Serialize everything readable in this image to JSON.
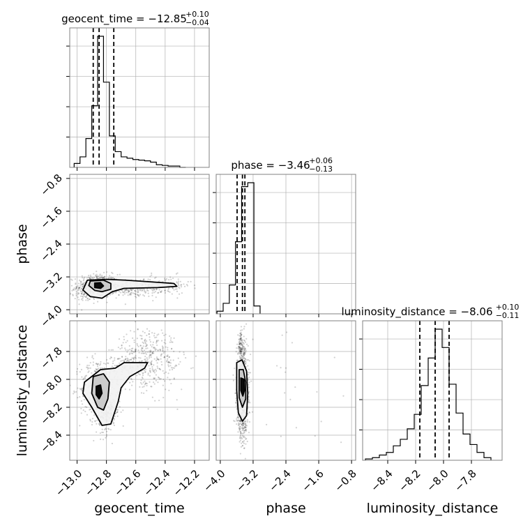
{
  "chart_data": {
    "type": "corner",
    "parameters": [
      "geocent_time",
      "phase",
      "luminosity_distance"
    ],
    "ranges": {
      "geocent_time": [
        -13.05,
        -12.1
      ],
      "phase": [
        -4.1,
        -0.7
      ],
      "luminosity_distance": [
        -8.58,
        -7.58
      ]
    },
    "ticks": {
      "geocent_time": [
        -13.0,
        -12.8,
        -12.6,
        -12.4,
        -12.2
      ],
      "phase": [
        -4.0,
        -3.2,
        -2.4,
        -1.6,
        -0.8
      ],
      "luminosity_distance": [
        -8.4,
        -8.2,
        -8.0,
        -7.8
      ]
    },
    "tick_labels": {
      "geocent_time": [
        "−13.0",
        "−12.8",
        "−12.6",
        "−12.4",
        "−12.2"
      ],
      "phase": [
        "−4.0",
        "−3.2",
        "−2.4",
        "−1.6",
        "−0.8"
      ],
      "luminosity_distance": [
        "−8.4",
        "−8.2",
        "−8.0",
        "−7.8"
      ]
    },
    "titles": [
      {
        "param": "geocent_time",
        "prefix": "geocent_time = −12.85",
        "sup": "+0.10",
        "sub": "−0.04"
      },
      {
        "param": "phase",
        "prefix": "phase = −3.46",
        "sup": "+0.06",
        "sub": "−0.13"
      },
      {
        "param": "luminosity_distance",
        "prefix": "luminosity_distance = −8.06",
        "sup": "+0.10",
        "sub": "−0.11"
      }
    ],
    "quantiles": {
      "geocent_time": [
        -12.89,
        -12.85,
        -12.75
      ],
      "phase": [
        -3.59,
        -3.46,
        -3.4
      ],
      "luminosity_distance": [
        -8.17,
        -8.06,
        -7.96
      ]
    },
    "histograms": {
      "geocent_time": {
        "edges": [
          -13.02,
          -12.98,
          -12.94,
          -12.9,
          -12.86,
          -12.82,
          -12.78,
          -12.74,
          -12.7,
          -12.66,
          -12.62,
          -12.58,
          -12.54,
          -12.5,
          -12.46,
          -12.42,
          -12.38,
          -12.34,
          -12.3,
          -12.26
        ],
        "counts": [
          0.03,
          0.08,
          0.22,
          0.47,
          1.0,
          0.65,
          0.24,
          0.12,
          0.08,
          0.07,
          0.06,
          0.055,
          0.05,
          0.04,
          0.02,
          0.015,
          0.01,
          0.01,
          0.0
        ]
      },
      "phase": {
        "edges": [
          -4.08,
          -3.93,
          -3.78,
          -3.63,
          -3.48,
          -3.33,
          -3.18,
          -3.03
        ],
        "counts": [
          0.02,
          0.08,
          0.22,
          0.55,
          0.97,
          1.0,
          0.06
        ]
      },
      "luminosity_distance": {
        "edges": [
          -8.56,
          -8.51,
          -8.46,
          -8.41,
          -8.36,
          -8.31,
          -8.26,
          -8.21,
          -8.16,
          -8.11,
          -8.06,
          -8.01,
          -7.96,
          -7.91,
          -7.86,
          -7.81,
          -7.76,
          -7.71,
          -7.66
        ],
        "counts": [
          0.01,
          0.02,
          0.04,
          0.06,
          0.11,
          0.16,
          0.24,
          0.35,
          0.57,
          0.78,
          1.0,
          0.86,
          0.58,
          0.36,
          0.2,
          0.12,
          0.06,
          0.02
        ]
      }
    },
    "scatter": {
      "phase|geocent_time": {
        "clusters": [
          {
            "cx": -12.86,
            "cy": -3.42,
            "sx": 0.07,
            "sy": 0.14,
            "n": 520
          },
          {
            "cx": -12.62,
            "cy": -3.48,
            "sx": 0.1,
            "sy": 0.1,
            "n": 230
          },
          {
            "cx": -12.4,
            "cy": -3.4,
            "sx": 0.09,
            "sy": 0.12,
            "n": 110
          },
          {
            "cx": -12.95,
            "cy": -3.6,
            "sx": 0.05,
            "sy": 0.12,
            "n": 60
          }
        ]
      },
      "luminosity_distance|geocent_time": {
        "clusters": [
          {
            "cx": -12.86,
            "cy": -8.07,
            "sx": 0.06,
            "sy": 0.11,
            "n": 360
          },
          {
            "cx": -12.8,
            "cy": -8.22,
            "sx": 0.05,
            "sy": 0.09,
            "n": 180
          },
          {
            "cx": -12.62,
            "cy": -7.9,
            "sx": 0.1,
            "sy": 0.08,
            "n": 260
          },
          {
            "cx": -12.5,
            "cy": -7.76,
            "sx": 0.09,
            "sy": 0.07,
            "n": 150
          },
          {
            "cx": -12.42,
            "cy": -7.95,
            "sx": 0.08,
            "sy": 0.1,
            "n": 90
          }
        ]
      },
      "luminosity_distance|phase": {
        "clusters": [
          {
            "cx": -3.46,
            "cy": -8.04,
            "sx": 0.07,
            "sy": 0.15,
            "n": 700
          },
          {
            "cx": -3.5,
            "cy": -7.75,
            "sx": 0.04,
            "sy": 0.05,
            "n": 80
          },
          {
            "cx": -3.45,
            "cy": -8.32,
            "sx": 0.07,
            "sy": 0.08,
            "n": 120
          },
          {
            "cx": -2.3,
            "cy": -8.05,
            "sx": 0.8,
            "sy": 0.2,
            "n": 25
          }
        ]
      }
    },
    "contours": {
      "phase|geocent_time": [
        [
          [
            -12.93,
            -3.28
          ],
          [
            -12.79,
            -3.26
          ],
          [
            -12.67,
            -3.28
          ],
          [
            -12.5,
            -3.32
          ],
          [
            -12.34,
            -3.36
          ],
          [
            -12.32,
            -3.43
          ],
          [
            -12.45,
            -3.46
          ],
          [
            -12.68,
            -3.48
          ],
          [
            -12.76,
            -3.56
          ],
          [
            -12.83,
            -3.72
          ],
          [
            -12.91,
            -3.68
          ],
          [
            -12.96,
            -3.52
          ]
        ],
        [
          [
            -12.91,
            -3.3
          ],
          [
            -12.82,
            -3.28
          ],
          [
            -12.77,
            -3.36
          ],
          [
            -12.77,
            -3.5
          ],
          [
            -12.83,
            -3.56
          ],
          [
            -12.88,
            -3.53
          ],
          [
            -12.92,
            -3.41
          ]
        ],
        [
          [
            -12.88,
            -3.35
          ],
          [
            -12.84,
            -3.34
          ],
          [
            -12.82,
            -3.42
          ],
          [
            -12.84,
            -3.48
          ],
          [
            -12.88,
            -3.46
          ]
        ]
      ],
      "luminosity_distance|geocent_time": [
        [
          [
            -12.95,
            -8.02
          ],
          [
            -12.84,
            -7.93
          ],
          [
            -12.74,
            -7.92
          ],
          [
            -12.68,
            -7.88
          ],
          [
            -12.52,
            -7.88
          ],
          [
            -12.54,
            -7.92
          ],
          [
            -12.64,
            -7.98
          ],
          [
            -12.7,
            -8.06
          ],
          [
            -12.72,
            -8.16
          ],
          [
            -12.77,
            -8.32
          ],
          [
            -12.83,
            -8.33
          ],
          [
            -12.9,
            -8.2
          ],
          [
            -12.96,
            -8.1
          ]
        ],
        [
          [
            -12.89,
            -7.98
          ],
          [
            -12.82,
            -7.96
          ],
          [
            -12.78,
            -8.02
          ],
          [
            -12.79,
            -8.14
          ],
          [
            -12.82,
            -8.22
          ],
          [
            -12.86,
            -8.2
          ],
          [
            -12.9,
            -8.1
          ]
        ],
        [
          [
            -12.87,
            -8.05
          ],
          [
            -12.84,
            -8.04
          ],
          [
            -12.83,
            -8.1
          ],
          [
            -12.85,
            -8.14
          ],
          [
            -12.87,
            -8.11
          ]
        ]
      ],
      "luminosity_distance|phase": [
        [
          [
            -3.6,
            -7.88
          ],
          [
            -3.47,
            -7.86
          ],
          [
            -3.36,
            -7.94
          ],
          [
            -3.33,
            -8.1
          ],
          [
            -3.36,
            -8.26
          ],
          [
            -3.46,
            -8.3
          ],
          [
            -3.56,
            -8.24
          ],
          [
            -3.6,
            -8.08
          ]
        ],
        [
          [
            -3.54,
            -7.93
          ],
          [
            -3.44,
            -7.93
          ],
          [
            -3.38,
            -8.02
          ],
          [
            -3.38,
            -8.14
          ],
          [
            -3.46,
            -8.2
          ],
          [
            -3.54,
            -8.13
          ]
        ],
        [
          [
            -3.5,
            -7.99
          ],
          [
            -3.42,
            -8.0
          ],
          [
            -3.41,
            -8.08
          ],
          [
            -3.45,
            -8.12
          ],
          [
            -3.5,
            -8.08
          ]
        ]
      ]
    },
    "grid": true
  }
}
